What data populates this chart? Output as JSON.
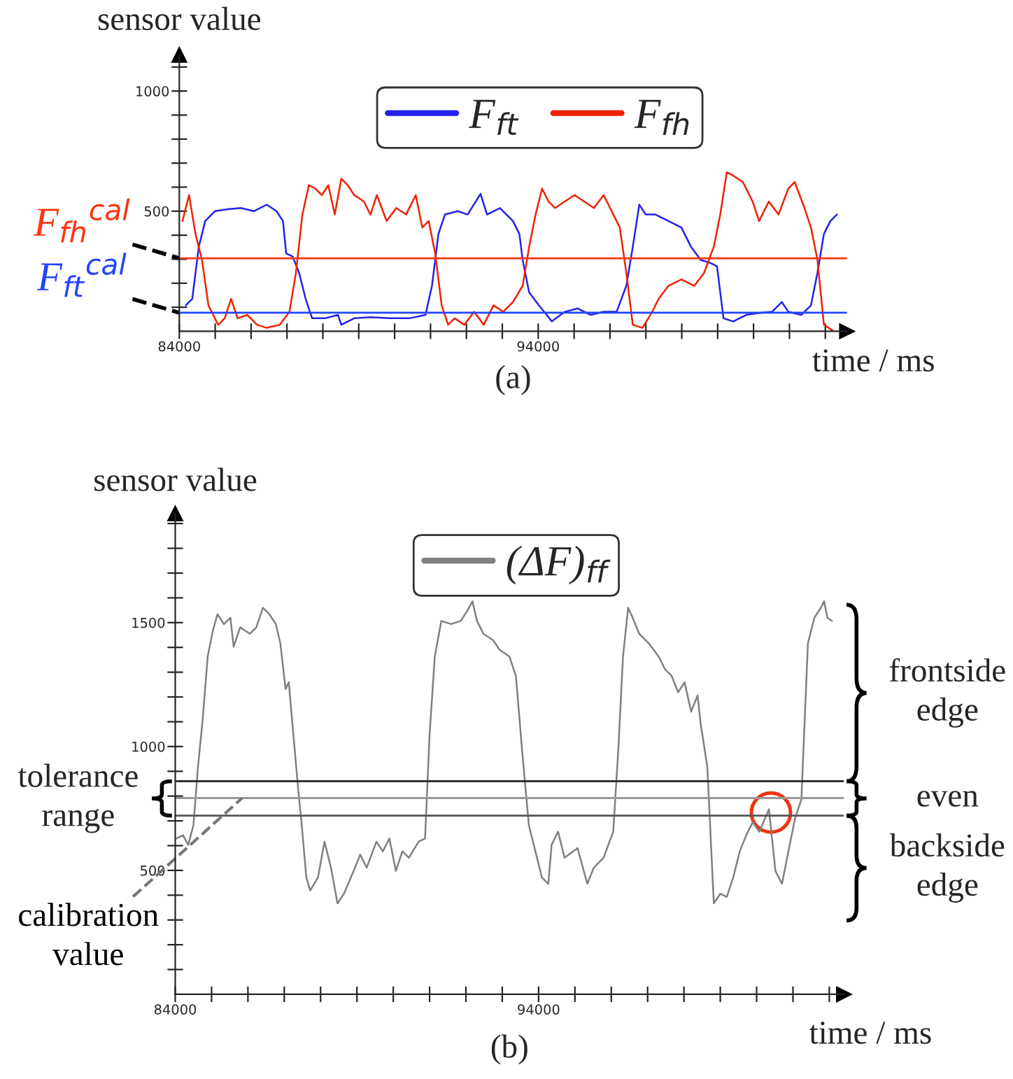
{
  "chart_data": [
    {
      "type": "line",
      "ylabel": "sensor value",
      "xlabel": "time / ms",
      "annotations": [
        "(a)"
      ],
      "xlim": [
        84000,
        102600
      ],
      "ylim": [
        0,
        1150
      ],
      "xticks": [
        {
          "value": 84000,
          "label": "84000"
        },
        {
          "value": 85000,
          "label": null
        },
        {
          "value": 86000,
          "label": null
        },
        {
          "value": 87000,
          "label": null
        },
        {
          "value": 88000,
          "label": null
        },
        {
          "value": 89000,
          "label": null
        },
        {
          "value": 90000,
          "label": null
        },
        {
          "value": 91000,
          "label": null
        },
        {
          "value": 92000,
          "label": null
        },
        {
          "value": 93000,
          "label": null
        },
        {
          "value": 94000,
          "label": "94000"
        },
        {
          "value": 95000,
          "label": null
        },
        {
          "value": 96000,
          "label": null
        },
        {
          "value": 97000,
          "label": null
        },
        {
          "value": 98000,
          "label": null
        },
        {
          "value": 99000,
          "label": null
        },
        {
          "value": 100000,
          "label": null
        },
        {
          "value": 101000,
          "label": null
        },
        {
          "value": 102000,
          "label": null
        }
      ],
      "yticks": [
        {
          "value": 100,
          "label": null
        },
        {
          "value": 200,
          "label": null
        },
        {
          "value": 300,
          "label": null
        },
        {
          "value": 400,
          "label": null
        },
        500,
        {
          "value": 600,
          "label": null
        },
        {
          "value": 700,
          "label": null
        },
        {
          "value": 800,
          "label": null
        },
        {
          "value": 900,
          "label": null
        },
        1000,
        {
          "value": 1100,
          "label": null
        }
      ],
      "legend": "top",
      "grid": false,
      "ref_lines": [
        {
          "axis": "y",
          "value": 304,
          "label": "F$_{fh}$$^{cal}$",
          "color": "#ff3311"
        },
        {
          "axis": "y",
          "value": 77,
          "label": "F$_{ft}$$^{cal}$",
          "color": "#2244ff"
        }
      ],
      "series": [
        {
          "name": "F$_{ft}$",
          "color": "#2222ee",
          "x": [
            84181,
            84361,
            84542,
            84722,
            84993,
            85354,
            85715,
            86076,
            86437,
            86708,
            86888,
            86978,
            87159,
            87339,
            87520,
            87700,
            88061,
            88422,
            88513,
            88874,
            89325,
            89866,
            90408,
            90859,
            91040,
            91220,
            91401,
            91762,
            92032,
            92393,
            92574,
            92935,
            93296,
            93476,
            93567,
            93747,
            94018,
            94379,
            94740,
            95101,
            95462,
            95823,
            96184,
            96455,
            96635,
            96816,
            96996,
            97267,
            97628,
            97989,
            98260,
            98530,
            98801,
            98982,
            99162,
            99433,
            99794,
            100155,
            100516,
            100787,
            100968,
            101329,
            101600,
            101780,
            101961,
            102141,
            102322
          ],
          "values": [
            108,
            135,
            351,
            459,
            500,
            508,
            513,
            500,
            527,
            500,
            459,
            324,
            311,
            243,
            135,
            54,
            54,
            68,
            27,
            54,
            59,
            54,
            54,
            68,
            189,
            405,
            486,
            500,
            486,
            572,
            486,
            513,
            459,
            405,
            297,
            162,
            108,
            41,
            81,
            95,
            68,
            81,
            81,
            189,
            351,
            527,
            486,
            486,
            459,
            432,
            351,
            297,
            284,
            270,
            54,
            41,
            68,
            76,
            81,
            122,
            81,
            68,
            108,
            243,
            405,
            459,
            486
          ]
        },
        {
          "name": "F$_{fh}$",
          "color": "#ee2200",
          "x": [
            84090,
            84271,
            84451,
            84632,
            84812,
            85083,
            85264,
            85444,
            85625,
            85895,
            86166,
            86437,
            86798,
            87069,
            87249,
            87430,
            87610,
            87791,
            87971,
            88152,
            88332,
            88513,
            88693,
            88874,
            89144,
            89325,
            89505,
            89776,
            90047,
            90318,
            90588,
            90769,
            90949,
            91130,
            91310,
            91491,
            91671,
            91942,
            92213,
            92484,
            92754,
            93025,
            93296,
            93567,
            93747,
            93928,
            94108,
            94289,
            94469,
            94740,
            95011,
            95281,
            95552,
            95823,
            96094,
            96274,
            96455,
            96635,
            96906,
            97177,
            97357,
            97628,
            97989,
            98350,
            98621,
            98891,
            99072,
            99253,
            99433,
            99704,
            99975,
            100155,
            100426,
            100697,
            100968,
            101148,
            101419,
            101600,
            101780,
            101961,
            102231
          ],
          "values": [
            459,
            567,
            405,
            297,
            108,
            27,
            54,
            135,
            54,
            68,
            27,
            14,
            27,
            81,
            243,
            486,
            608,
            594,
            567,
            608,
            486,
            635,
            608,
            567,
            540,
            486,
            567,
            459,
            513,
            486,
            567,
            432,
            459,
            324,
            108,
            27,
            54,
            27,
            81,
            27,
            108,
            81,
            122,
            189,
            351,
            486,
            594,
            540,
            513,
            540,
            567,
            540,
            513,
            567,
            486,
            432,
            243,
            27,
            14,
            81,
            135,
            189,
            216,
            189,
            243,
            351,
            486,
            662,
            648,
            621,
            540,
            459,
            540,
            486,
            594,
            621,
            513,
            432,
            297,
            27,
            0
          ]
        }
      ]
    },
    {
      "type": "line",
      "ylabel": "sensor value",
      "xlabel": "time / ms",
      "annotations": [
        "tolerance\nrange",
        "frontside\nedge",
        "even",
        "backside\nedge",
        "(b)"
      ],
      "xlim": [
        84000,
        102400
      ],
      "ylim": [
        0,
        1940
      ],
      "xticks": [
        {
          "value": 84000,
          "label": "84000"
        },
        {
          "value": 85000,
          "label": null
        },
        {
          "value": 86000,
          "label": null
        },
        {
          "value": 87000,
          "label": null
        },
        {
          "value": 88000,
          "label": null
        },
        {
          "value": 89000,
          "label": null
        },
        {
          "value": 90000,
          "label": null
        },
        {
          "value": 91000,
          "label": null
        },
        {
          "value": 92000,
          "label": null
        },
        {
          "value": 93000,
          "label": null
        },
        {
          "value": 94000,
          "label": "94000"
        },
        {
          "value": 95000,
          "label": null
        },
        {
          "value": 96000,
          "label": null
        },
        {
          "value": 97000,
          "label": null
        },
        {
          "value": 98000,
          "label": null
        },
        {
          "value": 99000,
          "label": null
        },
        {
          "value": 100000,
          "label": null
        },
        {
          "value": 101000,
          "label": null
        },
        {
          "value": 102000,
          "label": null
        }
      ],
      "yticks": [
        {
          "value": 100,
          "label": null
        },
        {
          "value": 200,
          "label": null
        },
        {
          "value": 300,
          "label": null
        },
        {
          "value": 400,
          "label": null
        },
        500,
        {
          "value": 600,
          "label": null
        },
        {
          "value": 700,
          "label": null
        },
        {
          "value": 800,
          "label": null
        },
        {
          "value": 900,
          "label": null
        },
        1000,
        {
          "value": 1100,
          "label": null
        },
        {
          "value": 1200,
          "label": null
        },
        {
          "value": 1300,
          "label": null
        },
        {
          "value": 1400,
          "label": null
        },
        1500,
        {
          "value": 1600,
          "label": null
        },
        {
          "value": 1700,
          "label": null
        },
        {
          "value": 1800,
          "label": null
        },
        {
          "value": 1900,
          "label": null
        }
      ],
      "legend": "top",
      "grid": false,
      "ref_lines": [
        {
          "axis": "y",
          "value": 860,
          "color": "#222222"
        },
        {
          "axis": "y",
          "value": 792,
          "label": "calibration\nvalue",
          "color": "#999999"
        },
        {
          "axis": "y",
          "value": 721,
          "color": "#555555"
        }
      ],
      "series": [
        {
          "name": "(ΔF)$_{ff}$",
          "color": "#808080",
          "x": [
            84036,
            84214,
            84357,
            84500,
            84625,
            84750,
            84893,
            85036,
            85161,
            85340,
            85518,
            85607,
            85786,
            86054,
            86232,
            86411,
            86590,
            86768,
            86893,
            87036,
            87125,
            87250,
            87393,
            87482,
            87607,
            87714,
            87929,
            88108,
            88286,
            88465,
            88643,
            88911,
            89090,
            89268,
            89536,
            89714,
            89893,
            90072,
            90250,
            90429,
            90697,
            90875,
            91000,
            91143,
            91322,
            91590,
            91857,
            92036,
            92179,
            92304,
            92482,
            92750,
            92929,
            93197,
            93375,
            93554,
            93732,
            93911,
            94090,
            94268,
            94357,
            94536,
            94714,
            95072,
            95340,
            95518,
            95786,
            96054,
            96197,
            96322,
            96464,
            96589,
            96768,
            97036,
            97304,
            97482,
            97661,
            97839,
            98018,
            98197,
            98375,
            98464,
            98643,
            98822,
            99000,
            99179,
            99357,
            99536,
            99714,
            99893,
            100072,
            100339,
            100518,
            100697,
            100875,
            101054,
            101232,
            101411,
            101590,
            101768,
            101857,
            101947,
            102072
          ],
          "values": [
            629,
            642,
            603,
            682,
            918,
            1101,
            1363,
            1468,
            1534,
            1494,
            1520,
            1403,
            1481,
            1455,
            1481,
            1560,
            1534,
            1494,
            1416,
            1232,
            1259,
            1049,
            813,
            682,
            472,
            419,
            472,
            616,
            511,
            367,
            406,
            498,
            564,
            511,
            616,
            577,
            629,
            498,
            577,
            551,
            616,
            629,
            1049,
            1363,
            1507,
            1494,
            1507,
            1547,
            1586,
            1507,
            1455,
            1429,
            1390,
            1363,
            1285,
            970,
            682,
            577,
            472,
            446,
            603,
            656,
            551,
            590,
            446,
            511,
            551,
            656,
            996,
            1363,
            1560,
            1520,
            1455,
            1416,
            1363,
            1311,
            1285,
            1219,
            1259,
            1141,
            1206,
            1088,
            918,
            367,
            406,
            393,
            472,
            577,
            642,
            695,
            656,
            747,
            498,
            446,
            577,
            708,
            787,
            1416,
            1520,
            1560,
            1586,
            1520,
            1507
          ]
        }
      ]
    }
  ]
}
